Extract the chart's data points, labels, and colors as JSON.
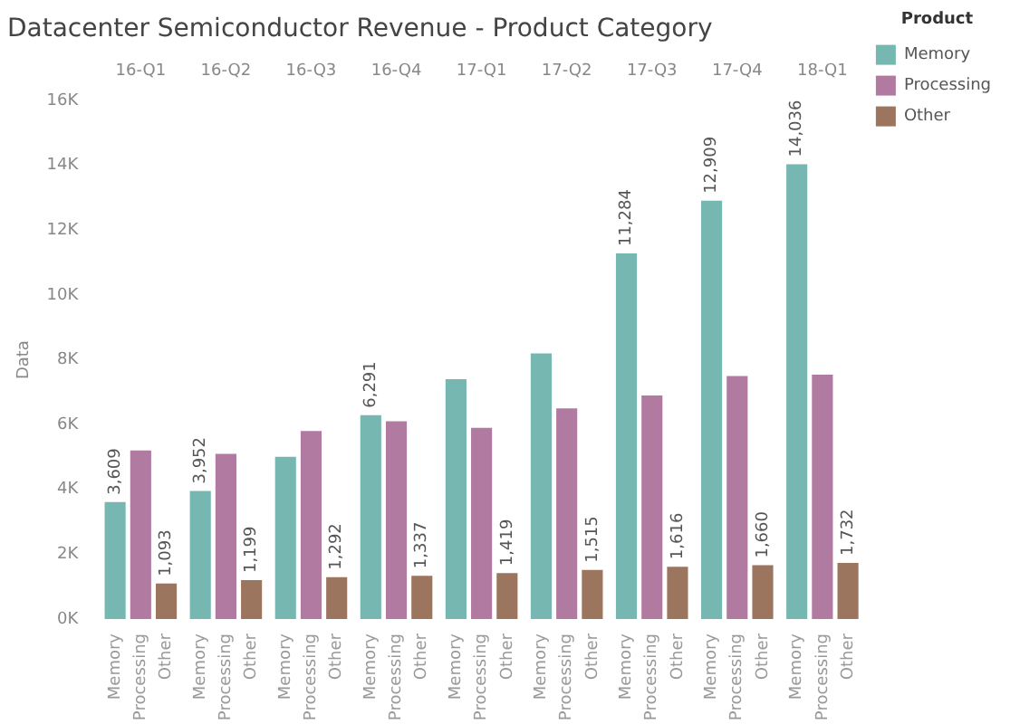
{
  "chart_data": {
    "type": "bar",
    "title": "Datacenter Semiconductor Revenue - Product Category",
    "ylabel": "Data",
    "legend_title": "Product",
    "categories": [
      "16-Q1",
      "16-Q2",
      "16-Q3",
      "16-Q4",
      "17-Q1",
      "17-Q2",
      "17-Q3",
      "17-Q4",
      "18-Q1"
    ],
    "series": [
      {
        "name": "Memory",
        "color": "#76b7b2",
        "values": [
          3609,
          3952,
          5010,
          6291,
          7400,
          8200,
          11284,
          12909,
          14036
        ],
        "value_labels": [
          "3,609",
          "3,952",
          null,
          "6,291",
          null,
          null,
          "11,284",
          "12,909",
          "14,036"
        ]
      },
      {
        "name": "Processing",
        "color": "#b07aa1",
        "values": [
          5200,
          5100,
          5800,
          6100,
          5900,
          6500,
          6900,
          7500,
          7540
        ],
        "value_labels": [
          null,
          null,
          null,
          null,
          null,
          null,
          null,
          null,
          null
        ]
      },
      {
        "name": "Other",
        "color": "#9c755f",
        "values": [
          1093,
          1199,
          1292,
          1337,
          1419,
          1515,
          1616,
          1660,
          1732
        ],
        "value_labels": [
          "1,093",
          "1,199",
          "1,292",
          "1,337",
          "1,419",
          "1,515",
          "1,616",
          "1,660",
          "1,732"
        ]
      }
    ],
    "ylim": [
      0,
      16000
    ],
    "yticks": [
      {
        "value": 0,
        "label": "0K"
      },
      {
        "value": 2000,
        "label": "2K"
      },
      {
        "value": 4000,
        "label": "4K"
      },
      {
        "value": 6000,
        "label": "6K"
      },
      {
        "value": 8000,
        "label": "8K"
      },
      {
        "value": 10000,
        "label": "10K"
      },
      {
        "value": 12000,
        "label": "12K"
      },
      {
        "value": 14000,
        "label": "14K"
      },
      {
        "value": 16000,
        "label": "16K"
      }
    ],
    "grid": false,
    "legend": "top right"
  }
}
